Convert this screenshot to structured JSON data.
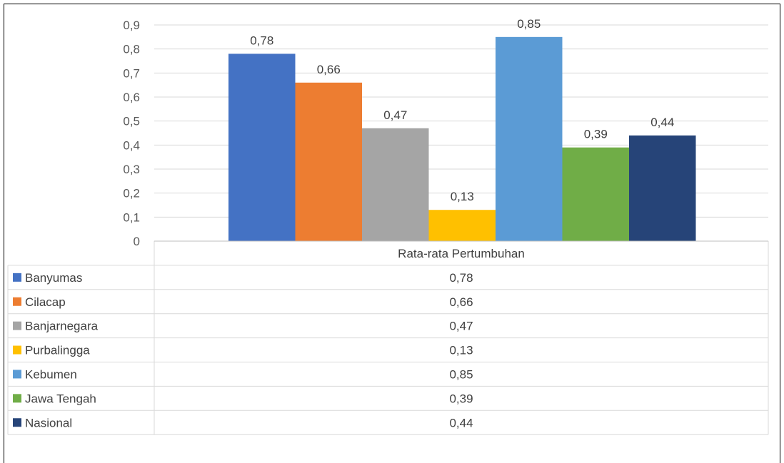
{
  "chart_data": {
    "type": "bar",
    "categories": [
      "Rata-rata Pertumbuhan"
    ],
    "series": [
      {
        "name": "Banyumas",
        "values": [
          0.78
        ],
        "color": "#4472C4"
      },
      {
        "name": "Cilacap",
        "values": [
          0.66
        ],
        "color": "#ED7D31"
      },
      {
        "name": "Banjarnegara",
        "values": [
          0.47
        ],
        "color": "#A5A5A5"
      },
      {
        "name": "Purbalingga",
        "values": [
          0.13
        ],
        "color": "#FFC000"
      },
      {
        "name": "Kebumen",
        "values": [
          0.85
        ],
        "color": "#5B9BD5"
      },
      {
        "name": "Jawa Tengah",
        "values": [
          0.39
        ],
        "color": "#70AD47"
      },
      {
        "name": "Nasional",
        "values": [
          0.44
        ],
        "color": "#264478"
      }
    ],
    "data_labels": [
      "0,78",
      "0,66",
      "0,47",
      "0,13",
      "0,85",
      "0,39",
      "0,44"
    ],
    "ylim": [
      0,
      0.9
    ],
    "yticks": [
      "0",
      "0,1",
      "0,2",
      "0,3",
      "0,4",
      "0,5",
      "0,6",
      "0,7",
      "0,8",
      "0,9"
    ],
    "grid": true,
    "legend": "data-table-below",
    "table_values": [
      "0,78",
      "0,66",
      "0,47",
      "0,13",
      "0,85",
      "0,39",
      "0,44"
    ]
  }
}
